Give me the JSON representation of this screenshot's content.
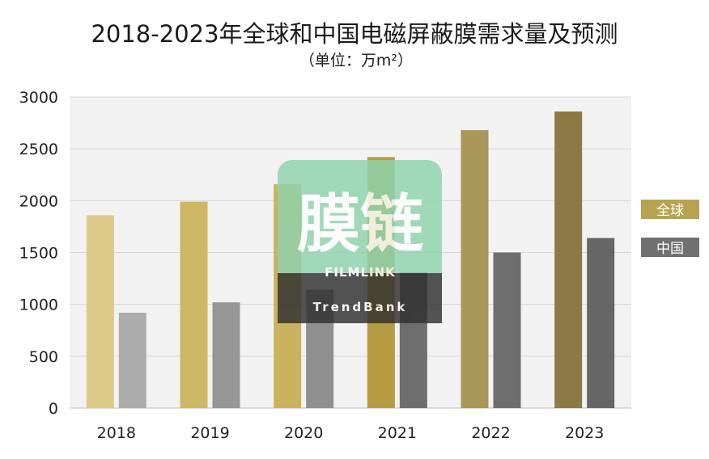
{
  "chart_data": {
    "type": "bar",
    "title": "2018-2023年全球和中国电磁屏蔽膜需求量及预测",
    "subtitle": "（单位：万m²）",
    "categories": [
      "2018",
      "2019",
      "2020",
      "2021",
      "2022",
      "2023"
    ],
    "yticks": [
      "0",
      "500",
      "1000",
      "1500",
      "2000",
      "2500",
      "3000"
    ],
    "ylim": [
      0,
      3000
    ],
    "grid": true,
    "legend_position": "right",
    "series": [
      {
        "name": "全球",
        "values": [
          1860,
          1990,
          2160,
          2420,
          2680,
          2860
        ],
        "colors": [
          "#DCC98A",
          "#CDB764",
          "#CAB35E",
          "#B59C42",
          "#A99659",
          "#8B7A45"
        ]
      },
      {
        "name": "中国",
        "values": [
          920,
          1020,
          1140,
          1310,
          1500,
          1640
        ],
        "colors": [
          "#ACACAC",
          "#969696",
          "#8F8F8F",
          "#6E6E6E",
          "#6E6E6E",
          "#666666"
        ]
      }
    ],
    "legend_colors": [
      "#B7A34F",
      "#707070"
    ]
  },
  "watermark": {
    "logo_text": "膜链",
    "brand": "FILMLINK",
    "sub_brand": "TrendBank",
    "top_color": "#8FD3AE",
    "bottom_color": "#2F2F2F"
  }
}
